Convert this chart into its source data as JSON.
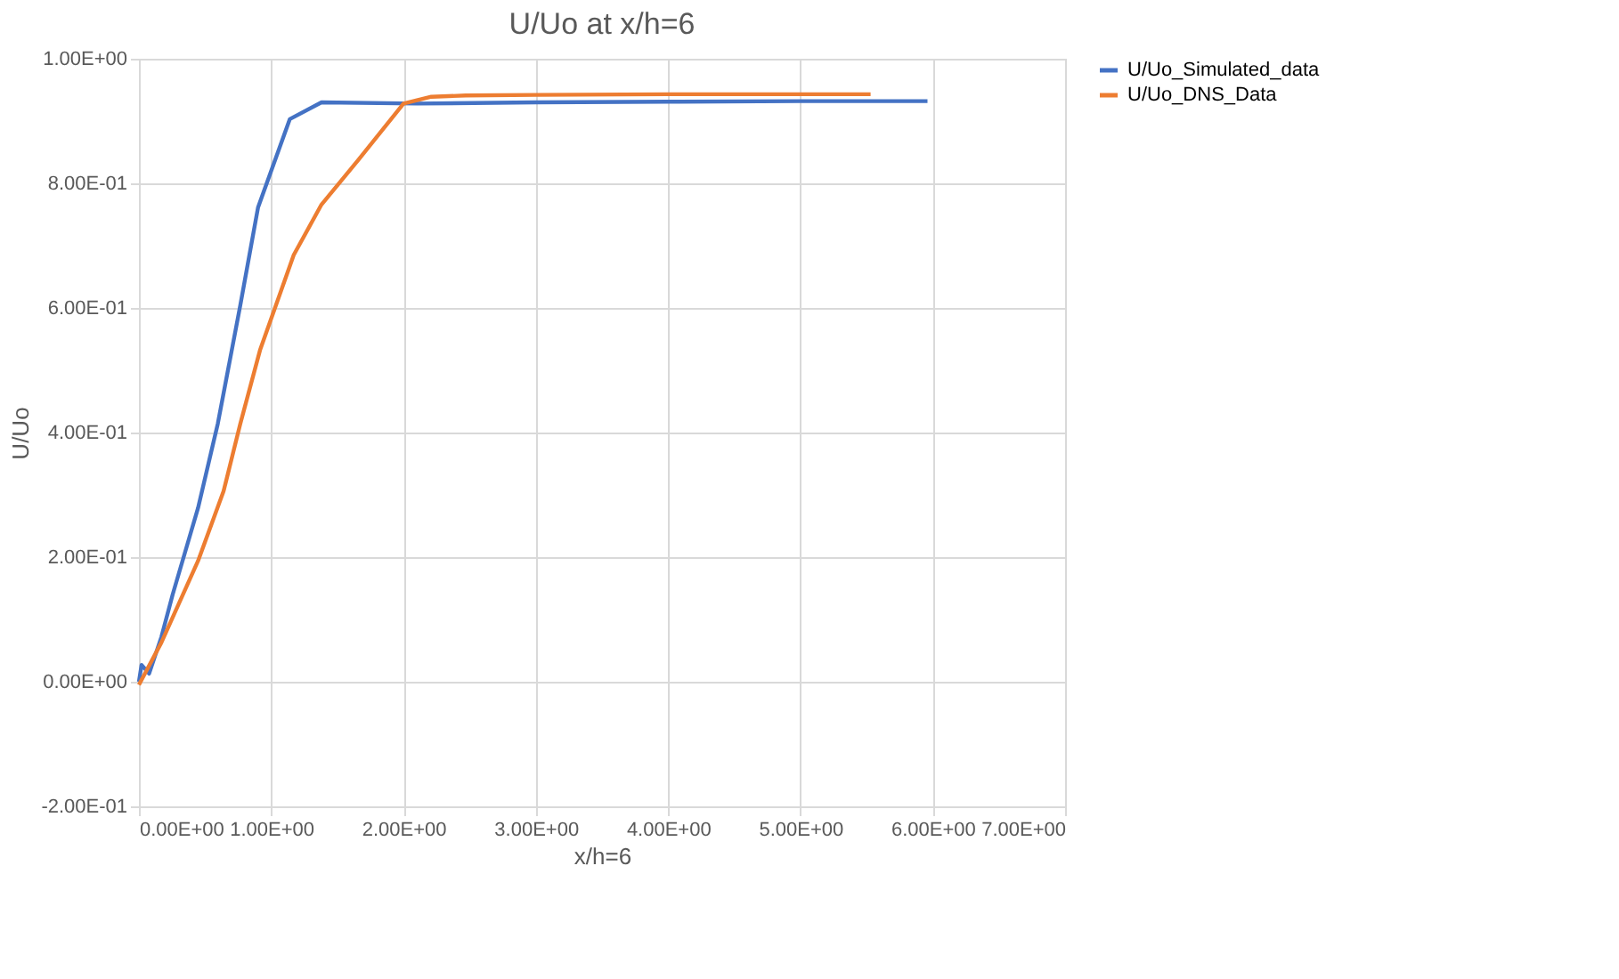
{
  "chart_data": {
    "type": "line",
    "title": "U/Uo at x/h=6",
    "xlabel": "x/h=6",
    "ylabel": "U/Uo",
    "series": [
      {
        "name": "U/Uo_Simulated_data",
        "color": "#4472c4",
        "x": [
          0,
          0.02,
          0.077,
          0.17,
          0.255,
          0.447,
          0.596,
          0.766,
          0.9,
          1.14,
          1.38,
          2.1,
          3.0,
          4.0,
          5.0,
          5.96
        ],
        "values": [
          0,
          0.027,
          0.013,
          0.072,
          0.14,
          0.279,
          0.414,
          0.604,
          0.761,
          0.903,
          0.93,
          0.928,
          0.93,
          0.931,
          0.932,
          0.932
        ]
      },
      {
        "name": "U/Uo_DNS_Data",
        "color": "#ed7d31",
        "x": [
          0,
          0.17,
          0.447,
          0.64,
          0.766,
          0.915,
          1.02,
          1.17,
          1.38,
          1.66,
          2.0,
          2.21,
          2.47,
          3.0,
          4.0,
          5.0,
          5.53
        ],
        "values": [
          -0.005,
          0.063,
          0.194,
          0.306,
          0.414,
          0.532,
          0.595,
          0.685,
          0.766,
          0.838,
          0.928,
          0.939,
          0.941,
          0.942,
          0.943,
          0.943,
          0.943
        ]
      }
    ],
    "xlim": [
      0,
      7
    ],
    "ylim": [
      -0.2,
      1.0
    ],
    "xticks": [
      {
        "value": 0,
        "label": "0.00E+00"
      },
      {
        "value": 1,
        "label": "1.00E+00"
      },
      {
        "value": 2,
        "label": "2.00E+00"
      },
      {
        "value": 3,
        "label": "3.00E+00"
      },
      {
        "value": 4,
        "label": "4.00E+00"
      },
      {
        "value": 5,
        "label": "5.00E+00"
      },
      {
        "value": 6,
        "label": "6.00E+00"
      },
      {
        "value": 7,
        "label": "7.00E+00"
      }
    ],
    "yticks": [
      {
        "value": -0.2,
        "label": "-2.00E-01"
      },
      {
        "value": 0,
        "label": "0.00E+00"
      },
      {
        "value": 0.2,
        "label": "2.00E-01"
      },
      {
        "value": 0.4,
        "label": "4.00E-01"
      },
      {
        "value": 0.6,
        "label": "6.00E-01"
      },
      {
        "value": 0.8,
        "label": "8.00E-01"
      },
      {
        "value": 1.0,
        "label": "1.00E+00"
      }
    ],
    "grid": true,
    "legend": "right",
    "marker": "none",
    "line_style": "solid"
  }
}
